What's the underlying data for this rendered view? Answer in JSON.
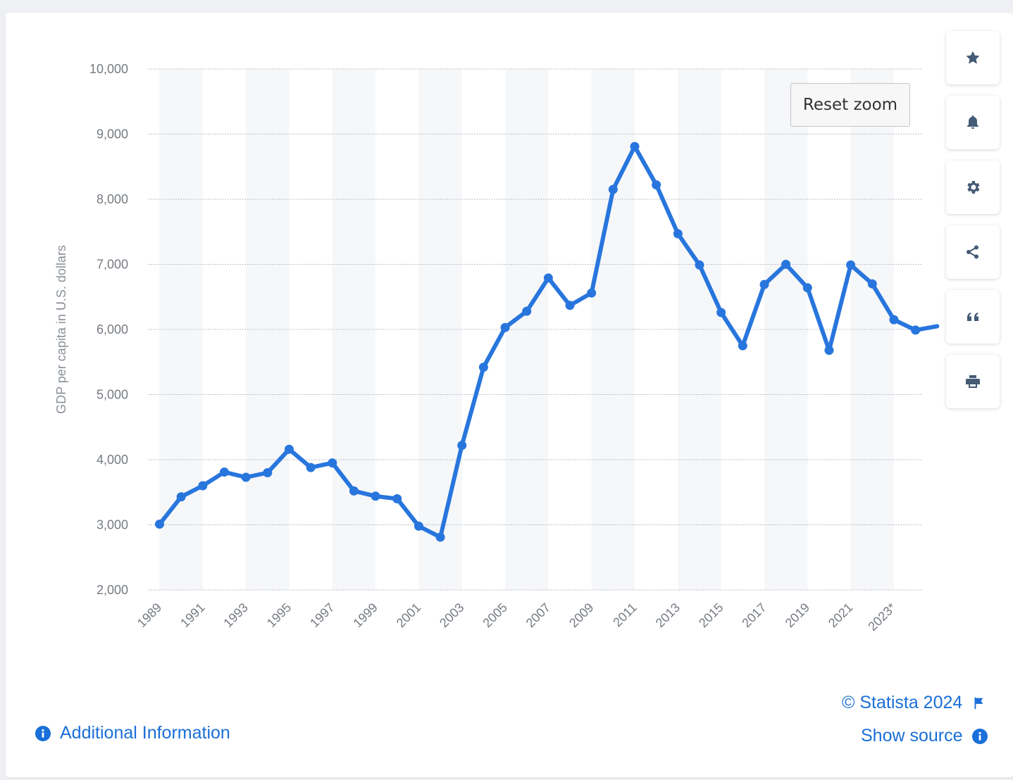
{
  "chart_data": {
    "type": "line",
    "ylabel": "GDP per capita in U.S. dollars",
    "xlabel": "",
    "ylim": [
      2000,
      10000
    ],
    "yticks": [
      2000,
      3000,
      4000,
      5000,
      6000,
      7000,
      8000,
      9000,
      10000
    ],
    "ytick_labels": [
      "2,000",
      "3,000",
      "4,000",
      "5,000",
      "6,000",
      "7,000",
      "8,000",
      "9,000",
      "10,000"
    ],
    "xtick_labels": [
      "1989",
      "1991",
      "1993",
      "1995",
      "1997",
      "1999",
      "2001",
      "2003",
      "2005",
      "2007",
      "2009",
      "2011",
      "2013",
      "2015",
      "2017",
      "2019",
      "2021",
      "2023*"
    ],
    "x": [
      1989,
      1990,
      1991,
      1992,
      1993,
      1994,
      1995,
      1996,
      1997,
      1998,
      1999,
      2000,
      2001,
      2002,
      2003,
      2004,
      2005,
      2006,
      2007,
      2008,
      2009,
      2010,
      2011,
      2012,
      2013,
      2014,
      2015,
      2016,
      2017,
      2018,
      2019,
      2020,
      2021,
      2022,
      2023,
      2024,
      2025
    ],
    "series": [
      {
        "name": "",
        "color": "#2876dd",
        "values": [
          3010,
          3430,
          3600,
          3810,
          3730,
          3800,
          4160,
          3880,
          3950,
          3520,
          3440,
          3400,
          2980,
          2810,
          4220,
          5420,
          6030,
          6280,
          6790,
          6370,
          6560,
          8150,
          8810,
          8220,
          7470,
          6990,
          6260,
          5750,
          6690,
          7000,
          6640,
          5680,
          6990,
          6700,
          6150,
          5990,
          6050
        ]
      }
    ],
    "grid": true,
    "legend": "none"
  },
  "ui": {
    "reset_zoom": "Reset zoom",
    "copyright": "© Statista 2024",
    "show_source": "Show source",
    "additional_info": "Additional Information",
    "toolbar_icons": [
      "star-icon",
      "bell-icon",
      "gear-icon",
      "share-icon",
      "quote-icon",
      "print-icon"
    ]
  },
  "colors": {
    "accent": "#2876dd",
    "link": "#1a6fd8",
    "band": "#f6f7f9",
    "icon": "#455a75"
  }
}
